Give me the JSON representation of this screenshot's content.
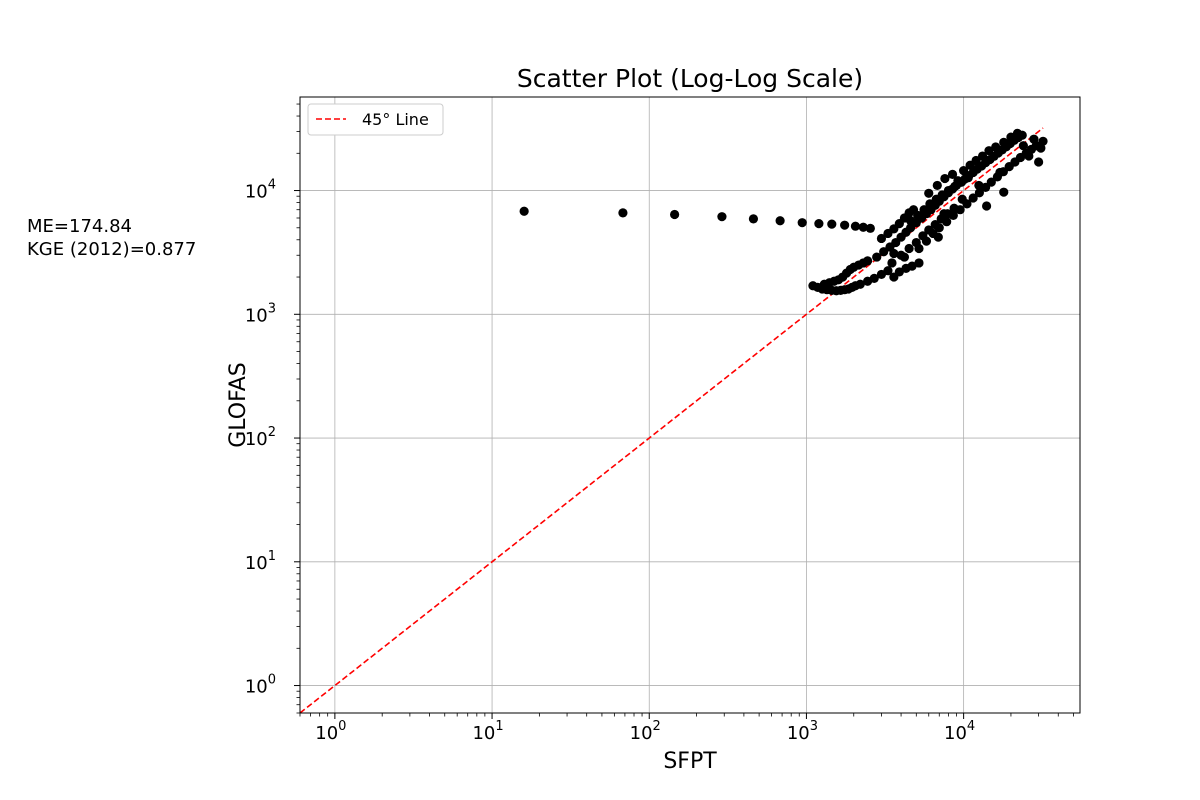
{
  "annotations": {
    "me": "ME=174.84",
    "kge": "KGE (2012)=0.877"
  },
  "chart_data": {
    "type": "scatter",
    "title": "Scatter Plot (Log-Log Scale)",
    "xlabel": "SFPT",
    "ylabel": "GLOFAS",
    "xscale": "log",
    "yscale": "log",
    "xlim": [
      0.6,
      55000
    ],
    "ylim": [
      0.6,
      57000
    ],
    "x_ticks": [
      {
        "base": "10",
        "exp": "0"
      },
      {
        "base": "10",
        "exp": "1"
      },
      {
        "base": "10",
        "exp": "2"
      },
      {
        "base": "10",
        "exp": "3"
      },
      {
        "base": "10",
        "exp": "4"
      }
    ],
    "y_ticks": [
      {
        "base": "10",
        "exp": "0"
      },
      {
        "base": "10",
        "exp": "1"
      },
      {
        "base": "10",
        "exp": "2"
      },
      {
        "base": "10",
        "exp": "3"
      },
      {
        "base": "10",
        "exp": "4"
      }
    ],
    "grid": true,
    "legend_position": "top-left",
    "legend": [
      {
        "label": "45° Line",
        "style": "dashed",
        "color": "#ff0000"
      }
    ],
    "marker_color": "#000000",
    "series": [
      {
        "points": [
          [
            16,
            6800
          ],
          [
            68,
            6600
          ],
          [
            145,
            6400
          ],
          [
            290,
            6150
          ],
          [
            460,
            5900
          ],
          [
            680,
            5700
          ],
          [
            940,
            5500
          ],
          [
            1200,
            5400
          ],
          [
            1450,
            5350
          ],
          [
            1750,
            5250
          ],
          [
            2050,
            5150
          ],
          [
            2300,
            5050
          ],
          [
            2550,
            4950
          ],
          [
            1100,
            1700
          ],
          [
            1180,
            1650
          ],
          [
            1260,
            1600
          ],
          [
            1350,
            1580
          ],
          [
            1450,
            1560
          ],
          [
            1550,
            1550
          ],
          [
            1650,
            1560
          ],
          [
            1750,
            1580
          ],
          [
            1850,
            1600
          ],
          [
            1950,
            1650
          ],
          [
            2050,
            1700
          ],
          [
            1300,
            1750
          ],
          [
            1400,
            1800
          ],
          [
            1500,
            1850
          ],
          [
            1600,
            1900
          ],
          [
            1700,
            2000
          ],
          [
            1800,
            2150
          ],
          [
            1900,
            2300
          ],
          [
            2000,
            2400
          ],
          [
            2150,
            2500
          ],
          [
            2300,
            2600
          ],
          [
            2450,
            2700
          ],
          [
            2200,
            1750
          ],
          [
            2450,
            1850
          ],
          [
            2700,
            1950
          ],
          [
            3000,
            2100
          ],
          [
            3300,
            2250
          ],
          [
            3600,
            2000
          ],
          [
            3900,
            2200
          ],
          [
            4300,
            2350
          ],
          [
            4700,
            2450
          ],
          [
            5200,
            2600
          ],
          [
            2800,
            2900
          ],
          [
            3100,
            3200
          ],
          [
            3400,
            3500
          ],
          [
            3700,
            3800
          ],
          [
            4000,
            4200
          ],
          [
            4300,
            4600
          ],
          [
            4600,
            5000
          ],
          [
            5000,
            5500
          ],
          [
            5400,
            6000
          ],
          [
            5800,
            6500
          ],
          [
            3000,
            4100
          ],
          [
            3300,
            4500
          ],
          [
            3600,
            4900
          ],
          [
            3900,
            5400
          ],
          [
            4200,
            6000
          ],
          [
            4500,
            6600
          ],
          [
            4800,
            7000
          ],
          [
            6200,
            7000
          ],
          [
            6600,
            7600
          ],
          [
            7000,
            8200
          ],
          [
            7500,
            8900
          ],
          [
            8000,
            9600
          ],
          [
            8500,
            10300
          ],
          [
            9000,
            11000
          ],
          [
            9600,
            11700
          ],
          [
            10200,
            12400
          ],
          [
            10800,
            13200
          ],
          [
            11500,
            14000
          ],
          [
            12200,
            14900
          ],
          [
            13000,
            15800
          ],
          [
            13800,
            16800
          ],
          [
            14700,
            17800
          ],
          [
            15600,
            18900
          ],
          [
            16600,
            20100
          ],
          [
            17600,
            21300
          ],
          [
            18700,
            22600
          ],
          [
            19800,
            24000
          ],
          [
            21000,
            25500
          ],
          [
            22300,
            26800
          ],
          [
            23600,
            28000
          ],
          [
            5200,
            3400
          ],
          [
            5800,
            3900
          ],
          [
            6400,
            4500
          ],
          [
            7000,
            5000
          ],
          [
            7800,
            5600
          ],
          [
            8600,
            6300
          ],
          [
            9500,
            7000
          ],
          [
            10500,
            7800
          ],
          [
            11500,
            8700
          ],
          [
            12600,
            9600
          ],
          [
            13800,
            10600
          ],
          [
            15000,
            11700
          ],
          [
            16400,
            12900
          ],
          [
            17900,
            14200
          ],
          [
            19500,
            15600
          ],
          [
            21200,
            17000
          ],
          [
            23000,
            18500
          ],
          [
            25000,
            20000
          ],
          [
            27000,
            21500
          ],
          [
            29000,
            23000
          ],
          [
            31000,
            22000
          ],
          [
            6000,
            9500
          ],
          [
            6800,
            11000
          ],
          [
            7600,
            12500
          ],
          [
            8500,
            13500
          ],
          [
            9200,
            12000
          ],
          [
            10000,
            14500
          ],
          [
            11000,
            16000
          ],
          [
            12000,
            17500
          ],
          [
            13200,
            19000
          ],
          [
            14500,
            21000
          ],
          [
            16000,
            22500
          ],
          [
            18000,
            24500
          ],
          [
            20000,
            27000
          ],
          [
            22000,
            29000
          ],
          [
            4600,
            5700
          ],
          [
            5100,
            6300
          ],
          [
            5600,
            7000
          ],
          [
            6100,
            7800
          ],
          [
            6700,
            8500
          ],
          [
            7300,
            9200
          ],
          [
            8000,
            10000
          ],
          [
            8800,
            10800
          ],
          [
            9700,
            11700
          ],
          [
            10700,
            12700
          ],
          [
            3500,
            2600
          ],
          [
            4000,
            3000
          ],
          [
            4500,
            3400
          ],
          [
            5000,
            3800
          ],
          [
            5500,
            4300
          ],
          [
            6000,
            4800
          ],
          [
            6600,
            5300
          ],
          [
            7200,
            5900
          ],
          [
            7900,
            6500
          ],
          [
            8700,
            7200
          ],
          [
            14000,
            7500
          ],
          [
            18000,
            9700
          ],
          [
            30000,
            17000
          ],
          [
            32000,
            25000
          ],
          [
            28000,
            26000
          ],
          [
            24000,
            23000
          ],
          [
            26000,
            19000
          ],
          [
            17000,
            14000
          ],
          [
            12500,
            11000
          ],
          [
            9800,
            8500
          ],
          [
            7500,
            6500
          ],
          [
            6900,
            4200
          ],
          [
            4200,
            2900
          ],
          [
            3600,
            3100
          ]
        ]
      }
    ],
    "reference_line": {
      "label": "45° Line",
      "from": [
        0.6,
        0.6
      ],
      "to": [
        32000,
        32000
      ],
      "color": "#ff0000"
    }
  }
}
